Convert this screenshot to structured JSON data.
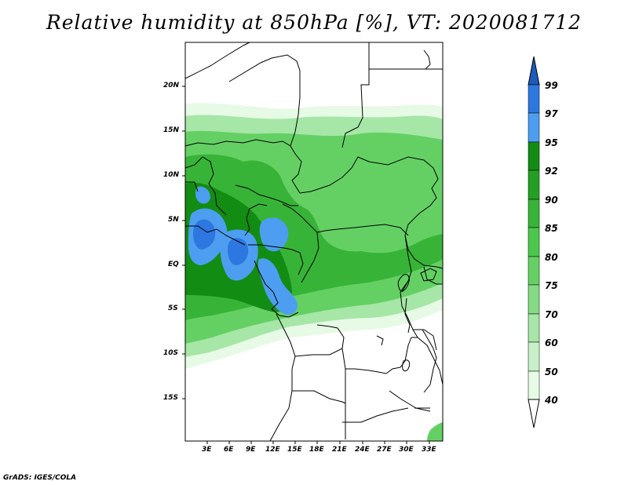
{
  "title": "Relative humidity at 850hPa [%], VT: 2020081712",
  "credit": "GrADS: IGES/COLA",
  "map": {
    "lat_labels": [
      "20N",
      "15N",
      "10N",
      "5N",
      "EQ",
      "5S",
      "10S",
      "15S"
    ],
    "lon_labels": [
      "3E",
      "6E",
      "9E",
      "12E",
      "15E",
      "18E",
      "21E",
      "24E",
      "27E",
      "30E",
      "33E"
    ]
  },
  "colorbar": {
    "levels": [
      "40",
      "50",
      "60",
      "70",
      "75",
      "80",
      "85",
      "90",
      "92",
      "95",
      "97",
      "99"
    ],
    "colors": {
      "40_50": "#e6fae6",
      "50_60": "#c8f0c8",
      "60_70": "#a6e6a6",
      "70_75": "#84db84",
      "75_80": "#64d064",
      "80_85": "#4bc84b",
      "85_90": "#37b437",
      "90_92": "#23a023",
      "92_95": "#138c13",
      "95_97": "#4d9ef0",
      "97_99": "#2d78e0",
      "above_99": "#1e5abe"
    }
  }
}
